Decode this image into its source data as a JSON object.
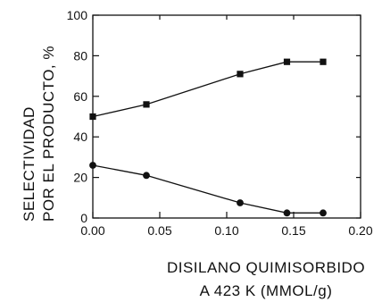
{
  "chart_data": {
    "type": "line",
    "title": "",
    "ylabel_lines": [
      "SELECTIVIDAD",
      "POR EL PRODUCTO, %"
    ],
    "xlabel_lines": [
      "DISILANO QUIMISORBIDO",
      "A 423 K (MMOL/g)"
    ],
    "xlim": [
      0.0,
      0.2
    ],
    "ylim": [
      0,
      100
    ],
    "x_ticks": [
      0.0,
      0.05,
      0.1,
      0.15,
      0.2
    ],
    "x_tick_labels": [
      "0.00",
      "0.05",
      "0.10",
      "0.15",
      "0.20"
    ],
    "y_ticks": [
      0,
      20,
      40,
      60,
      80,
      100
    ],
    "y_tick_labels": [
      "0",
      "20",
      "40",
      "60",
      "80",
      "100"
    ],
    "grid": false,
    "series": [
      {
        "marker": "square",
        "x": [
          0.0,
          0.04,
          0.11,
          0.145,
          0.172
        ],
        "y": [
          50,
          56,
          71,
          77,
          77
        ]
      },
      {
        "marker": "circle",
        "x": [
          0.0,
          0.04,
          0.11,
          0.145,
          0.172
        ],
        "y": [
          26,
          21,
          7.5,
          2.5,
          2.5
        ]
      }
    ]
  }
}
